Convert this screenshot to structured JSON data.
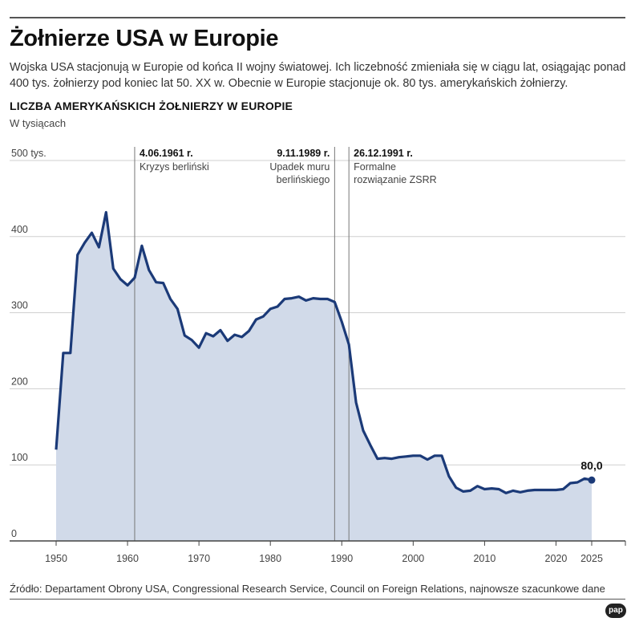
{
  "header": {
    "title": "Żołnierze USA w Europie",
    "subtitle": "Wojska USA stacjonują w Europie od końca II wojny światowej. Ich liczebność zmieniała się w ciągu lat, osiągając ponad 400 tys. żołnierzy pod koniec lat 50. XX w. Obecnie w Europie stacjonuje ok. 80 tys. amerykańskich żołnierzy."
  },
  "footer": {
    "source": "Źródło: Departament Obrony USA, Congressional Research Service, Council on Foreign Relations, najnowsze szacunkowe dane",
    "logo_text": "pap"
  },
  "chart_data": {
    "type": "area",
    "title": "LICZBA AMERYKAŃSKICH ŻOŁNIERZY W EUROPIE",
    "unit_label": "W tysiącach",
    "xlim": [
      1950,
      2025
    ],
    "ylim": [
      0,
      500
    ],
    "x_ticks": [
      {
        "value": 1950,
        "label": "1950"
      },
      {
        "value": 1960,
        "label": "1960"
      },
      {
        "value": 1970,
        "label": "1970"
      },
      {
        "value": 1980,
        "label": "1980"
      },
      {
        "value": 1990,
        "label": "1990"
      },
      {
        "value": 2000,
        "label": "2000"
      },
      {
        "value": 2010,
        "label": "2010"
      },
      {
        "value": 2020,
        "label": "2020"
      },
      {
        "value": 2025,
        "label": "2025"
      }
    ],
    "y_ticks": [
      {
        "value": 0,
        "label": "0"
      },
      {
        "value": 100,
        "label": "100"
      },
      {
        "value": 200,
        "label": "200"
      },
      {
        "value": 300,
        "label": "300"
      },
      {
        "value": 400,
        "label": "400"
      },
      {
        "value": 500,
        "label": "500 tys."
      }
    ],
    "grid": true,
    "line_color": "#1b3a78",
    "fill_color": "#d1dae9",
    "grid_color": "#cfcfcf",
    "axis_color": "#444444",
    "series": [
      {
        "x": [
          1950,
          1951,
          1952,
          1953,
          1954,
          1955,
          1956,
          1957,
          1958,
          1959,
          1960,
          1961,
          1962,
          1963,
          1964,
          1965,
          1966,
          1967,
          1968,
          1969,
          1970,
          1971,
          1972,
          1973,
          1974,
          1975,
          1976,
          1977,
          1978,
          1979,
          1980,
          1981,
          1982,
          1983,
          1984,
          1985,
          1986,
          1987,
          1988,
          1989,
          1990,
          1991,
          1992,
          1993,
          1994,
          1995,
          1996,
          1997,
          1998,
          1999,
          2000,
          2001,
          2002,
          2003,
          2004,
          2005,
          2006,
          2007,
          2008,
          2009,
          2010,
          2011,
          2012,
          2013,
          2014,
          2015,
          2016,
          2017,
          2018,
          2019,
          2020,
          2021,
          2022,
          2023,
          2024,
          2025
        ],
        "values": [
          120,
          247,
          247,
          376,
          392,
          405,
          386,
          432,
          358,
          344,
          336,
          346,
          388,
          356,
          340,
          339,
          318,
          305,
          270,
          264,
          254,
          273,
          269,
          277,
          263,
          271,
          268,
          276,
          291,
          295,
          305,
          308,
          318,
          319,
          321,
          316,
          319,
          318,
          318,
          314,
          288,
          258,
          182,
          145,
          126,
          108,
          109,
          108,
          110,
          111,
          112,
          112,
          107,
          112,
          112,
          85,
          70,
          65,
          66,
          72,
          68,
          69,
          68,
          63,
          66,
          64,
          66,
          67,
          67,
          67,
          67,
          68,
          76,
          77,
          82,
          80
        ]
      }
    ],
    "events": [
      {
        "x": 1961,
        "date": "4.06.1961 r.",
        "desc": [
          "Kryzys berliński"
        ],
        "align": "left"
      },
      {
        "x": 1989,
        "date": "9.11.1989 r.",
        "desc": [
          "Upadek muru",
          "berlińskiego"
        ],
        "align": "right"
      },
      {
        "x": 1991,
        "date": "26.12.1991 r.",
        "desc": [
          "Formalne",
          "rozwiązanie ZSRR"
        ],
        "align": "left"
      }
    ],
    "last_value_label": "80,0"
  }
}
